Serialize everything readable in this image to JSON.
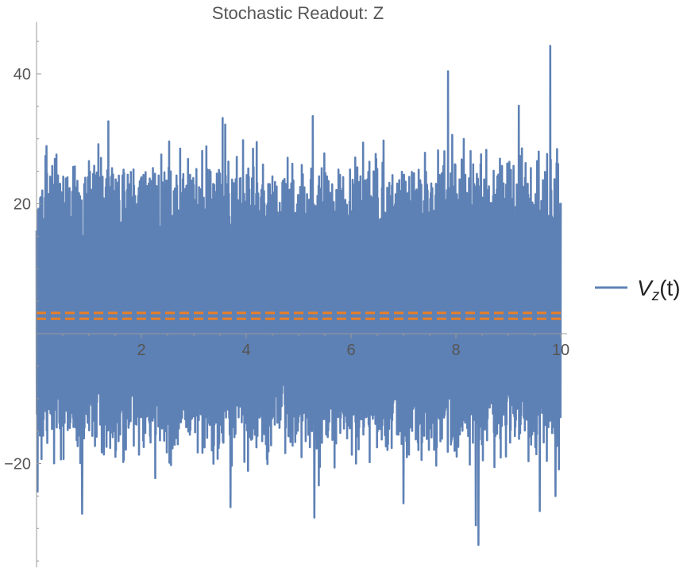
{
  "chart_data": {
    "type": "line",
    "title": "Stochastic Readout: Z",
    "xlabel": "",
    "ylabel": "",
    "xlim": [
      0,
      10
    ],
    "ylim": [
      -36,
      48
    ],
    "x_ticks": [
      2,
      4,
      6,
      8,
      10
    ],
    "x_tick_labels": [
      "2",
      "4",
      "6",
      "8",
      "10"
    ],
    "y_ticks": [
      -20,
      20,
      40
    ],
    "y_tick_labels": [
      "−20",
      "20",
      "40"
    ],
    "grid": false,
    "legend_position": "right",
    "legend": {
      "symbol": "V",
      "subscript": "z",
      "suffix": "(t)"
    },
    "series": [
      {
        "name": "Vz(t)",
        "color": "#5e81b5",
        "x_range": [
          0,
          10
        ],
        "sample_count": 2000,
        "typical_range": [
          -16,
          24
        ],
        "peaks": [
          {
            "x": 1.37,
            "y": 32.7
          },
          {
            "x": 2.53,
            "y": 29.6
          },
          {
            "x": 3.55,
            "y": 33.2
          },
          {
            "x": 5.27,
            "y": 33.5
          },
          {
            "x": 7.85,
            "y": 40.4
          },
          {
            "x": 9.2,
            "y": 35.1
          },
          {
            "x": 9.8,
            "y": 44.3
          },
          {
            "x": 3.6,
            "y": 32.2
          },
          {
            "x": 4.2,
            "y": 29.5
          }
        ],
        "troughs": [
          {
            "x": 0.02,
            "y": -24.3
          },
          {
            "x": 0.87,
            "y": -27.7
          },
          {
            "x": 3.7,
            "y": -26.7
          },
          {
            "x": 5.3,
            "y": -28.3
          },
          {
            "x": 8.38,
            "y": -29.5
          },
          {
            "x": 8.43,
            "y": -32.5
          },
          {
            "x": 7.0,
            "y": -26.1
          },
          {
            "x": 9.6,
            "y": -27.3
          },
          {
            "x": 9.9,
            "y": -25.0
          }
        ]
      },
      {
        "color": "#e97f26",
        "style": "dashed",
        "y": 2.3
      },
      {
        "color": "#e97f26",
        "style": "dashed",
        "y": 3.2
      }
    ]
  }
}
